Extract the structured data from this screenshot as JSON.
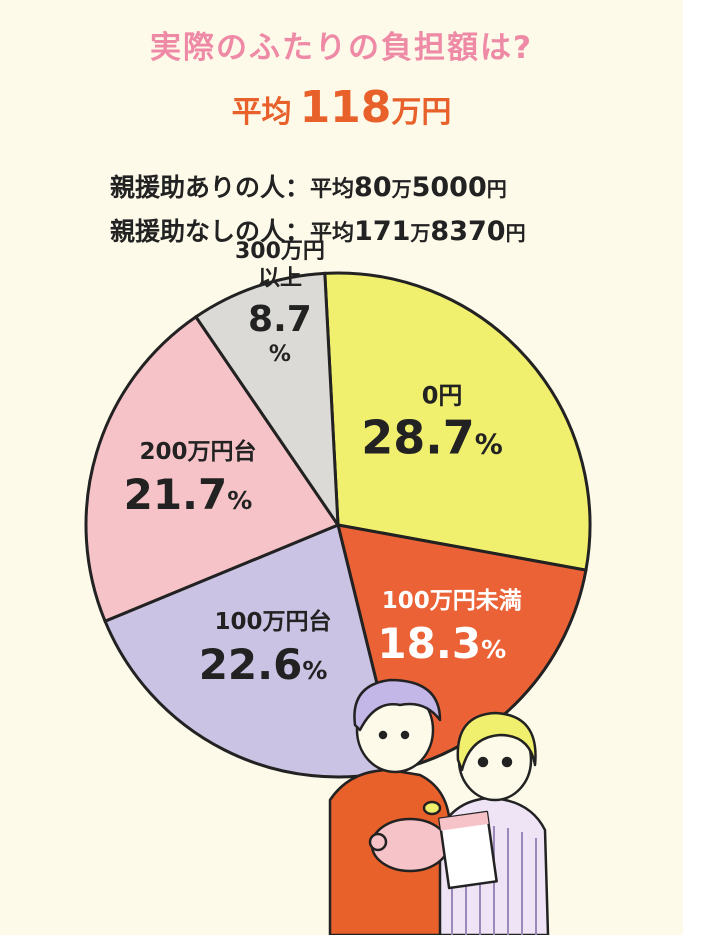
{
  "title": "実際のふたりの負担額は?",
  "average": {
    "label": "平均",
    "value": "118",
    "unit": "万円"
  },
  "breakdown": [
    {
      "name": "親援助ありの人：",
      "avg_label": "平均",
      "value_main": "80",
      "value_unit1": "万",
      "value_rest": "5000",
      "value_unit2": "円"
    },
    {
      "name": "親援助なしの人：",
      "avg_label": "平均",
      "value_main": "171",
      "value_unit1": "万",
      "value_rest": "8370",
      "value_unit2": "円"
    }
  ],
  "chart_data": {
    "type": "pie",
    "start_angle_deg": -3,
    "slices": [
      {
        "label": "0円",
        "value": 28.7,
        "color": "#f0ef6e"
      },
      {
        "label": "100万円未満",
        "value": 18.3,
        "color": "#ea6236"
      },
      {
        "label": "100万円台",
        "value": 22.6,
        "color": "#cbc3e3"
      },
      {
        "label": "200万円台",
        "value": 21.7,
        "color": "#f6c3c8"
      },
      {
        "label": "300万円以上",
        "value": 8.7,
        "color": "#dcdad6"
      }
    ]
  },
  "colors": {
    "outline": "#222222",
    "title_pink": "#ef8aa6",
    "accent_orange": "#e8602a",
    "background": "#fdfaea"
  }
}
